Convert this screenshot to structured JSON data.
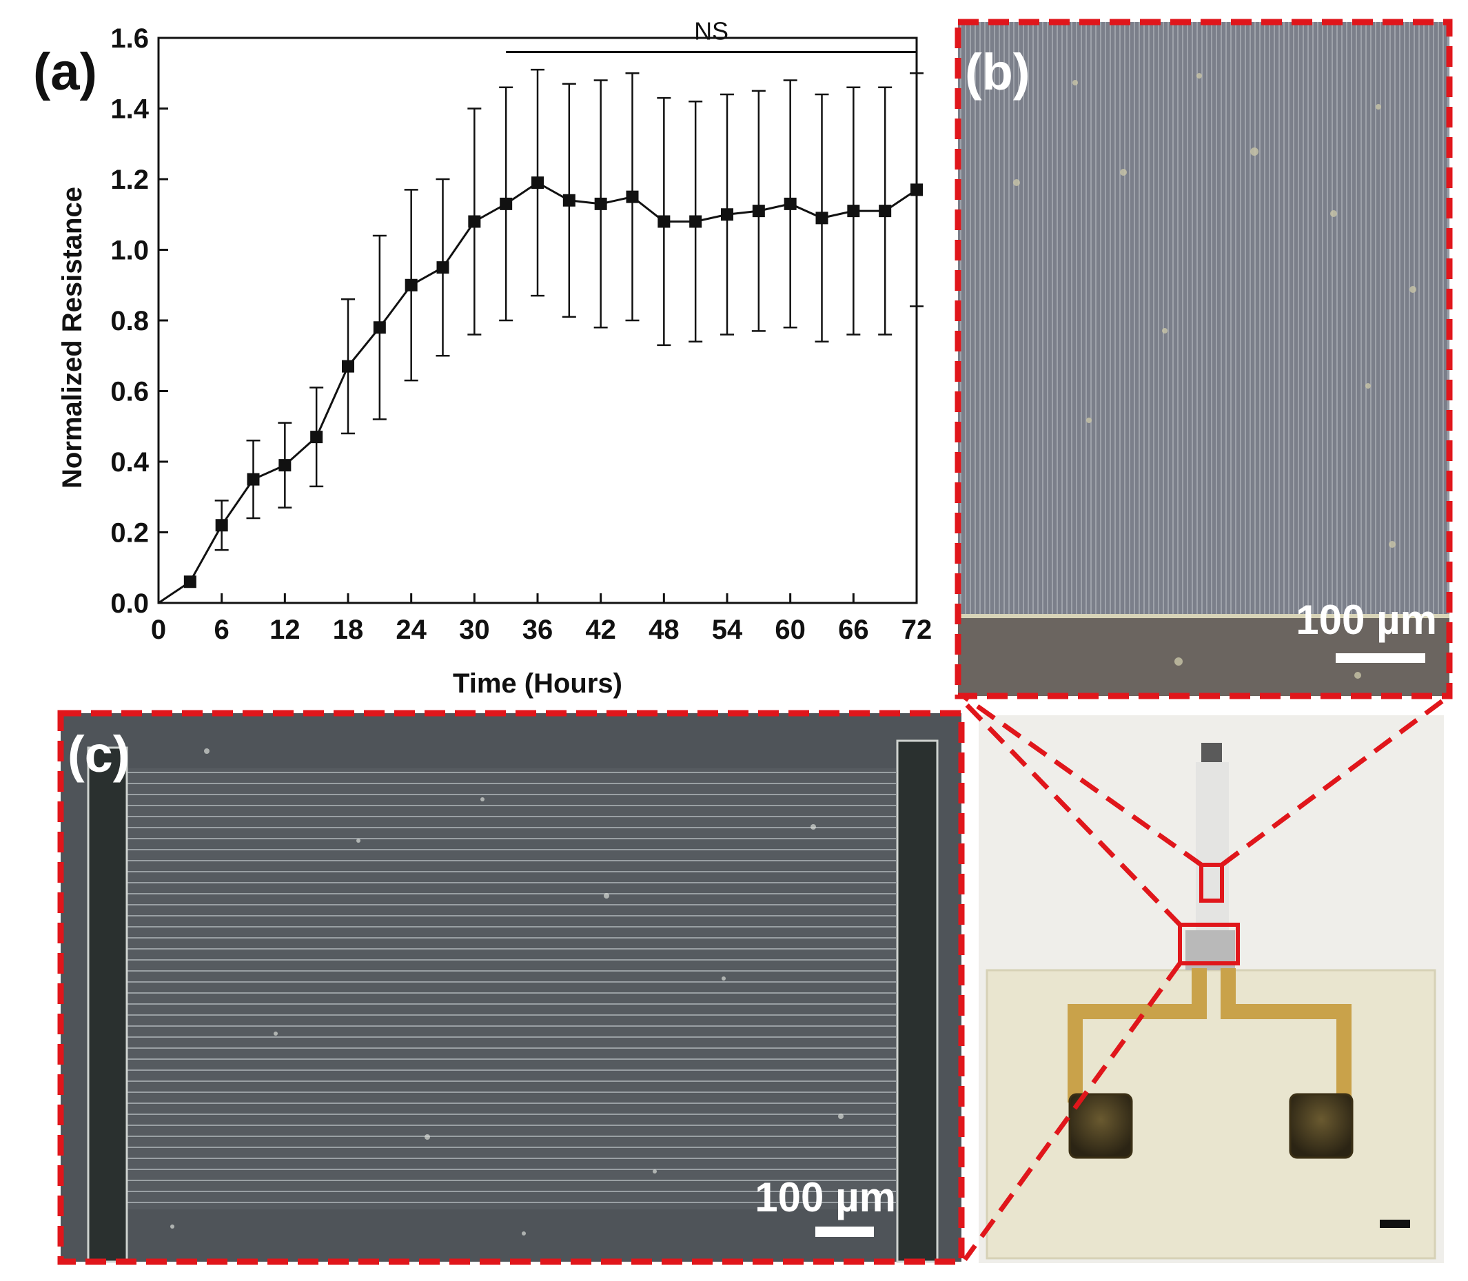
{
  "panels": {
    "a": {
      "letter": "(a)"
    },
    "b": {
      "letter": "(b)",
      "scale_bar_label": "100 µm"
    },
    "c": {
      "letter": "(c)",
      "scale_bar_label": "100 µm"
    }
  },
  "colors": {
    "accent_red": "#e0161b",
    "micrograph_b": "#7b7f8a",
    "micrograph_c": "#5a5e63",
    "electrode_dark": "#2a302f",
    "device_substrate": "#efeeea",
    "device_gold": "#c9a24a"
  },
  "chart_data": {
    "type": "line",
    "title": "",
    "xlabel": "Time (Hours)",
    "ylabel": "Normalized Resistance",
    "xlim": [
      0,
      72
    ],
    "ylim": [
      0,
      1.6
    ],
    "x_ticks": [
      0,
      6,
      12,
      18,
      24,
      30,
      36,
      42,
      48,
      54,
      60,
      66,
      72
    ],
    "y_ticks": [
      0.0,
      0.2,
      0.4,
      0.6,
      0.8,
      1.0,
      1.2,
      1.4,
      1.6
    ],
    "y_tick_labels": [
      "0.0",
      "0.2",
      "0.4",
      "0.6",
      "0.8",
      "1.0",
      "1.2",
      "1.4",
      "1.6"
    ],
    "grid": false,
    "annotation": {
      "text": "NS",
      "x_start": 33,
      "x_end": 72
    },
    "series": [
      {
        "x": [
          0,
          3,
          6,
          9,
          12,
          15,
          18,
          21,
          24,
          27,
          30,
          33,
          36,
          39,
          42,
          45,
          48,
          51,
          54,
          57,
          60,
          63,
          66,
          69,
          72
        ],
        "y": [
          0.0,
          0.06,
          0.22,
          0.35,
          0.39,
          0.47,
          0.67,
          0.78,
          0.9,
          0.95,
          1.08,
          1.13,
          1.19,
          1.14,
          1.13,
          1.15,
          1.08,
          1.08,
          1.1,
          1.11,
          1.13,
          1.09,
          1.11,
          1.11,
          1.17
        ],
        "error": [
          0,
          0,
          0.07,
          0.11,
          0.12,
          0.14,
          0.19,
          0.26,
          0.27,
          0.25,
          0.32,
          0.33,
          0.32,
          0.33,
          0.35,
          0.35,
          0.35,
          0.34,
          0.34,
          0.34,
          0.35,
          0.35,
          0.35,
          0.35,
          0.33
        ]
      }
    ]
  }
}
